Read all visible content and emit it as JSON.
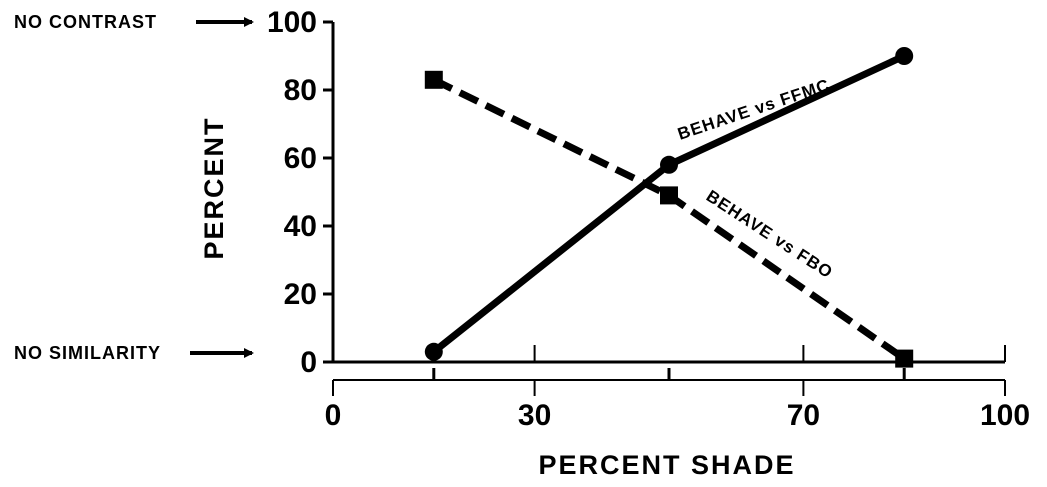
{
  "chart_data": {
    "type": "line",
    "title": "",
    "xlabel": "PERCENT SHADE",
    "ylabel": "PERCENT",
    "xlim": [
      0,
      100
    ],
    "ylim": [
      0,
      100
    ],
    "x_ticks": [
      "0",
      "30",
      "70",
      "100"
    ],
    "y_ticks": [
      "0",
      "20",
      "40",
      "60",
      "80",
      "100"
    ],
    "grid": false,
    "legend": "none",
    "annotations": {
      "top": "NO CONTRAST",
      "bottom": "NO SIMILARITY"
    },
    "series": [
      {
        "name": "BEHAVE vs FFMC",
        "style": "solid",
        "marker": "circle",
        "x": [
          15,
          50,
          85
        ],
        "y": [
          3,
          58,
          90
        ]
      },
      {
        "name": "BEHAVE vs FBO",
        "style": "dashed",
        "marker": "square",
        "x": [
          15,
          50,
          85
        ],
        "y": [
          83,
          49,
          1
        ]
      }
    ]
  },
  "colors": {
    "ink": "#000000",
    "background": "#ffffff"
  }
}
